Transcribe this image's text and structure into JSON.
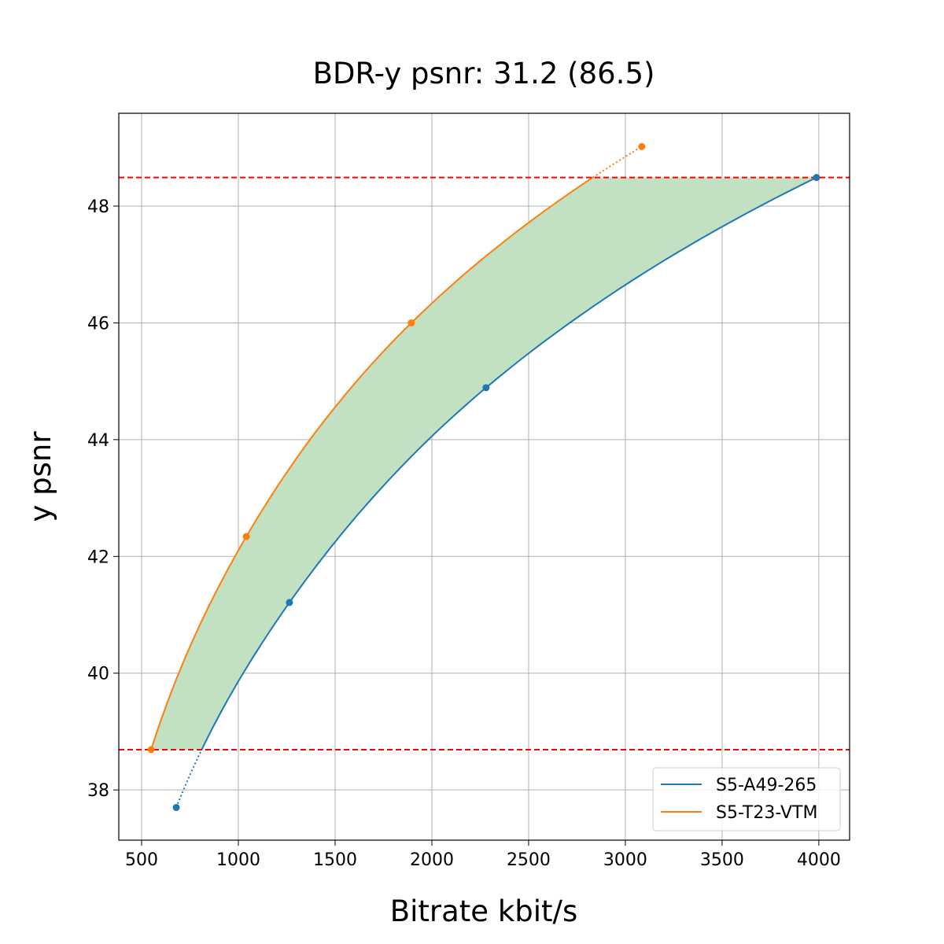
{
  "chart_data": {
    "type": "line",
    "title": "BDR-y psnr: 31.2 (86.5)",
    "xlabel": "Bitrate kbit/s",
    "ylabel": "y psnr",
    "xlim": [
      382,
      4159
    ],
    "ylim": [
      37.14,
      49.59
    ],
    "xticks": [
      500,
      1000,
      1500,
      2000,
      2500,
      3000,
      3500,
      4000
    ],
    "yticks": [
      38,
      40,
      42,
      44,
      46,
      48
    ],
    "grid": true,
    "legend_position": "lower-right",
    "reference_lines": {
      "y": [
        38.69,
        48.49
      ],
      "color": "#ff0000",
      "style": "dashed"
    },
    "fill_color": "#c2e0c2",
    "series": [
      {
        "name": "S5-A49-265",
        "color": "#1f77b4",
        "x": [
          679,
          1264,
          2280,
          3988
        ],
        "y": [
          37.7,
          41.21,
          44.89,
          48.49
        ]
      },
      {
        "name": "S5-T23-VTM",
        "color": "#ff7f0e",
        "x": [
          549,
          1041,
          1894,
          3085
        ],
        "y": [
          38.69,
          42.34,
          46.0,
          49.02
        ]
      }
    ]
  }
}
